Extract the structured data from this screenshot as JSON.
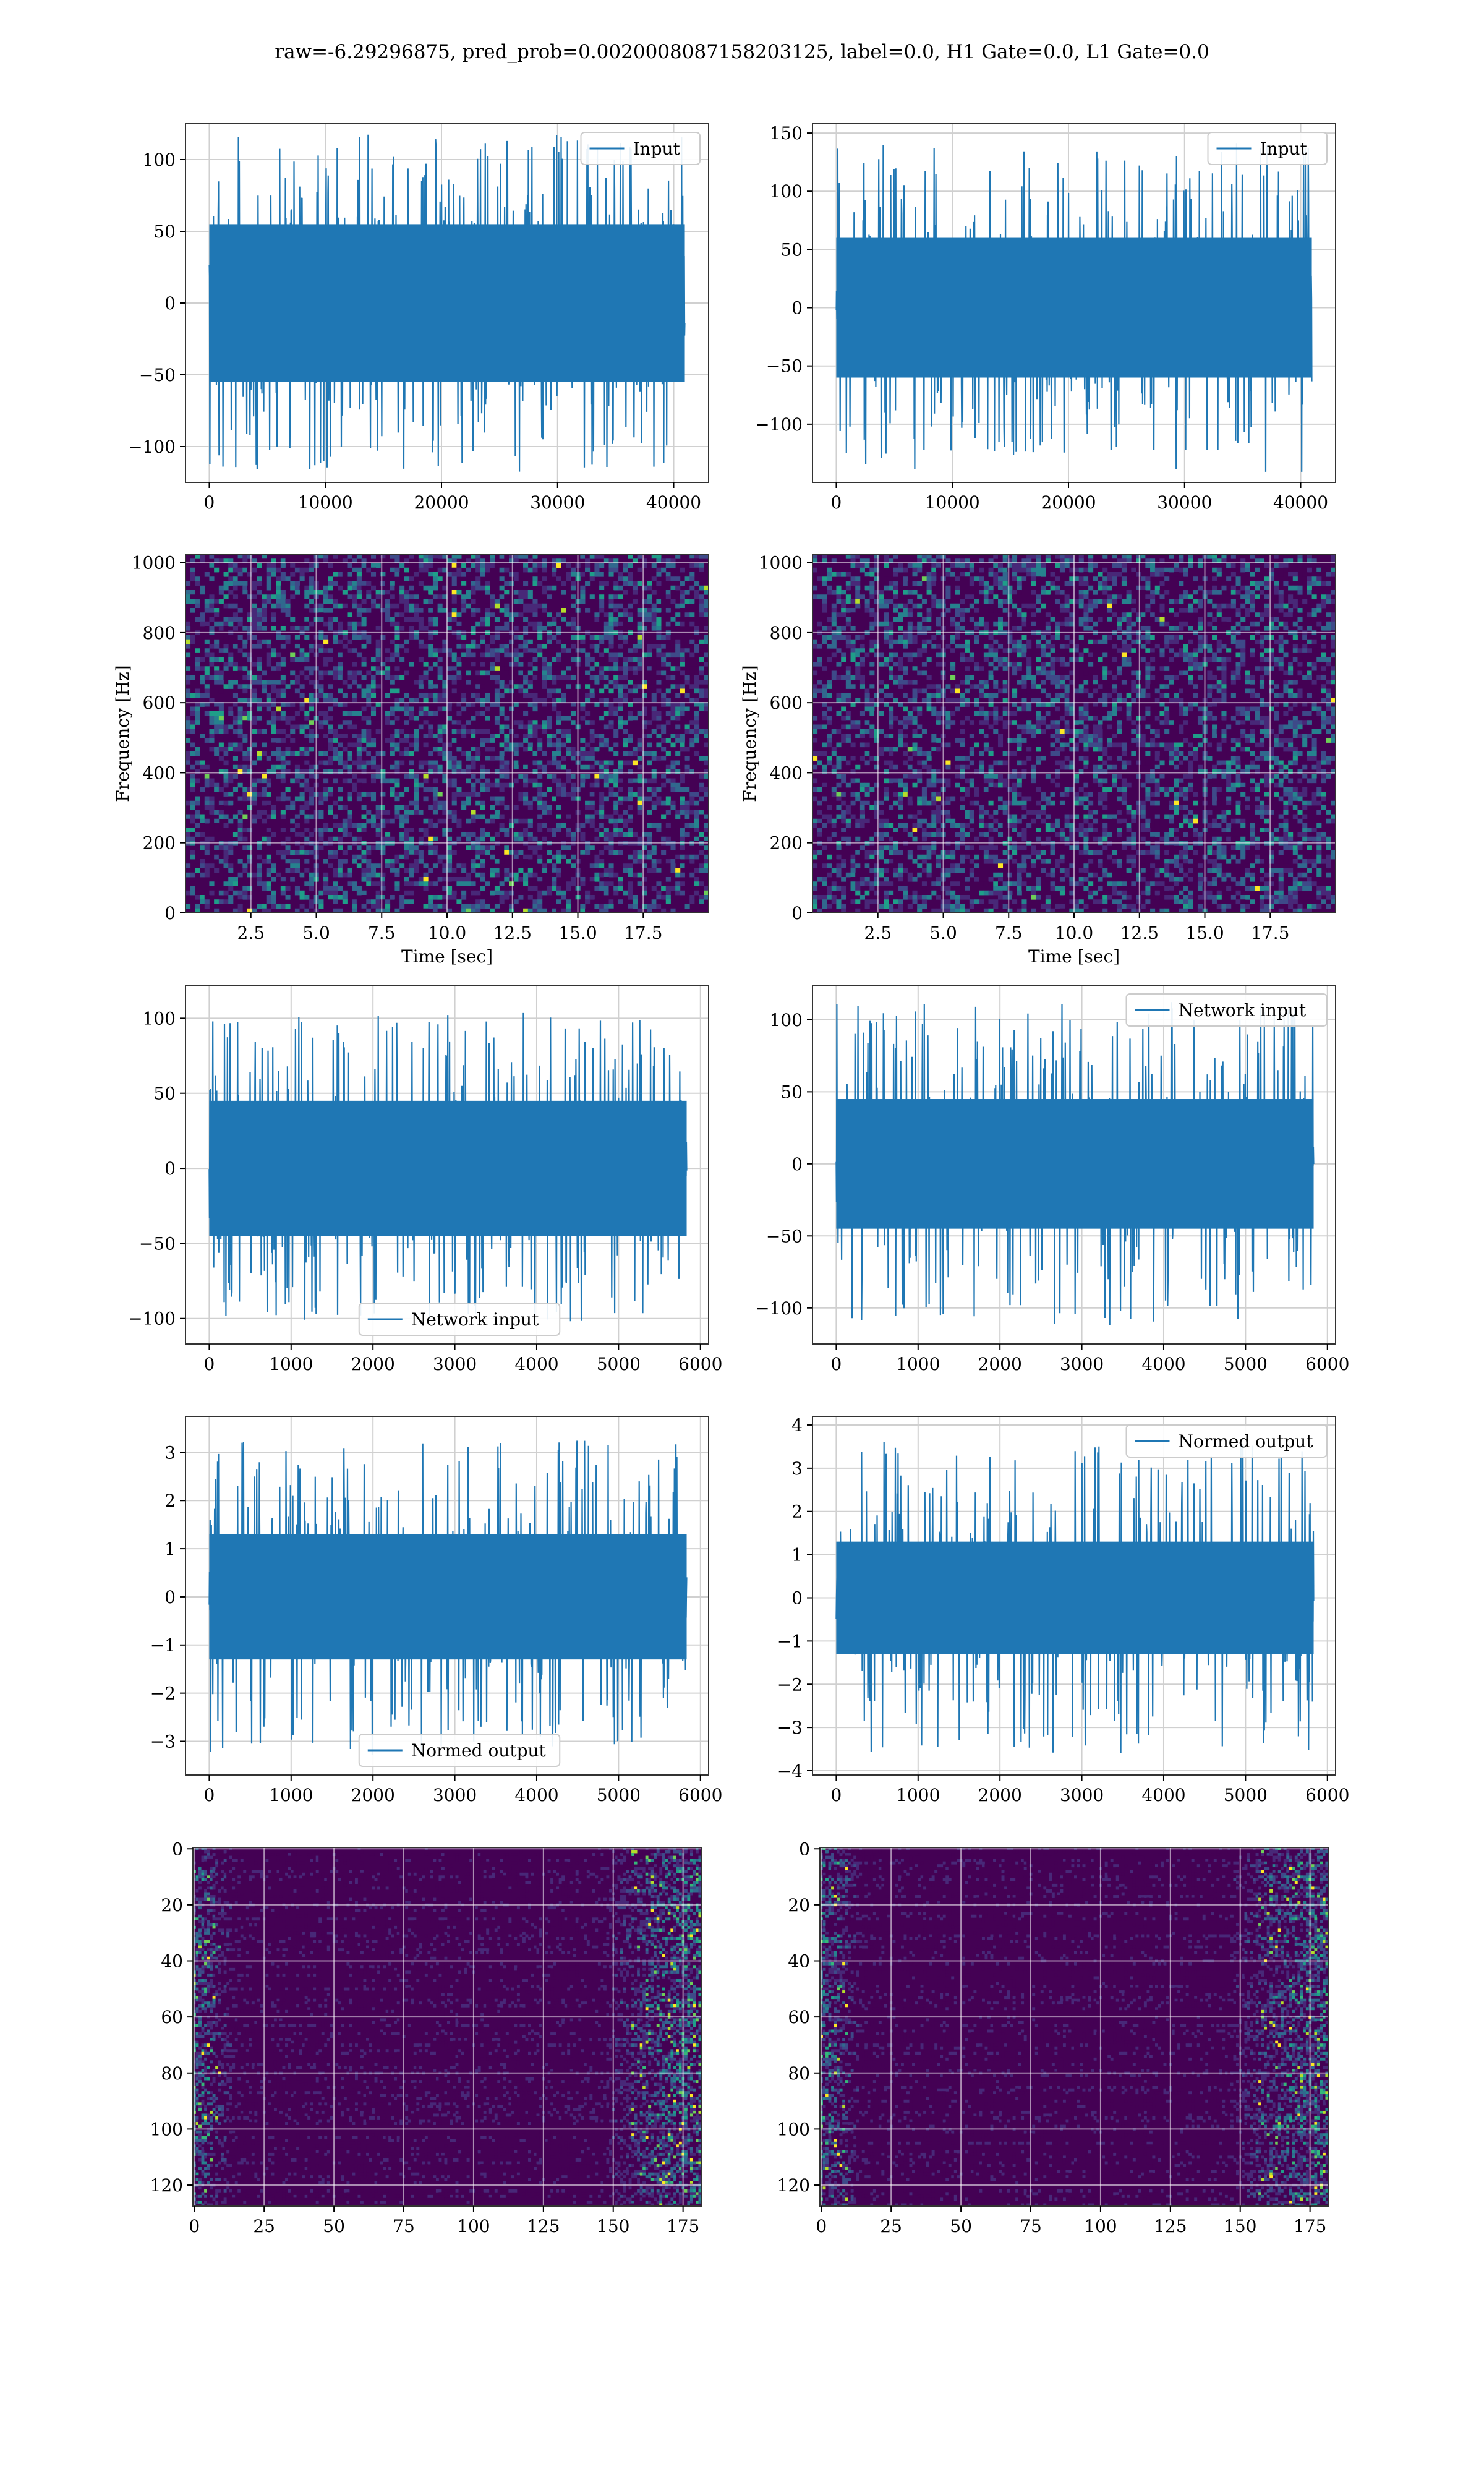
{
  "suptitle": "raw=-6.29296875, pred_prob=0.0020008087158203125, label=0.0, H1 Gate=0.0, L1 Gate=0.0",
  "colors": {
    "line": "#1f77b4",
    "grid": "#d0d0d0",
    "viridis_dark": "#440154",
    "viridis_mid": "#3b528b",
    "viridis_teal": "#21918c",
    "viridis_green": "#5ec962",
    "viridis_yellow": "#fde725"
  },
  "chart_data": [
    {
      "id": "h1-input",
      "type": "line",
      "title": "",
      "xlabel": "",
      "ylabel": "",
      "xlim": [
        -2048,
        43008
      ],
      "ylim": [
        -125,
        125
      ],
      "xticks": [
        0,
        10000,
        20000,
        30000,
        40000
      ],
      "yticks": [
        -100,
        -50,
        0,
        50,
        100
      ],
      "grid": true,
      "legend": "top-right",
      "series": [
        {
          "name": "Input",
          "x_range": [
            0,
            40960
          ],
          "band": [
            -55,
            55
          ],
          "peak": [
            -125,
            115
          ]
        }
      ]
    },
    {
      "id": "l1-input",
      "type": "line",
      "title": "",
      "xlabel": "",
      "ylabel": "",
      "xlim": [
        -2048,
        43008
      ],
      "ylim": [
        -150,
        158
      ],
      "xticks": [
        0,
        10000,
        20000,
        30000,
        40000
      ],
      "yticks": [
        -100,
        -50,
        0,
        50,
        100,
        150
      ],
      "grid": true,
      "legend": "top-right",
      "series": [
        {
          "name": "Input",
          "x_range": [
            0,
            40960
          ],
          "band": [
            -60,
            60
          ],
          "peak": [
            -135,
            150
          ]
        }
      ]
    },
    {
      "id": "h1-spectrogram",
      "type": "heatmap",
      "title": "",
      "xlabel": "Time [sec]",
      "ylabel": "Frequency [Hz]",
      "xlim": [
        0,
        20
      ],
      "ylim": [
        0,
        1024
      ],
      "xticks": [
        2.5,
        5.0,
        7.5,
        10.0,
        12.5,
        15.0,
        17.5
      ],
      "xticklabels": [
        "2.5",
        "5.0",
        "7.5",
        "10.0",
        "12.5",
        "15.0",
        "17.5"
      ],
      "yticks": [
        0,
        200,
        400,
        600,
        800,
        1000
      ],
      "grid": true,
      "colormap": "viridis"
    },
    {
      "id": "l1-spectrogram",
      "type": "heatmap",
      "title": "",
      "xlabel": "Time [sec]",
      "ylabel": "Frequency [Hz]",
      "xlim": [
        0,
        20
      ],
      "ylim": [
        0,
        1024
      ],
      "xticks": [
        2.5,
        5.0,
        7.5,
        10.0,
        12.5,
        15.0,
        17.5
      ],
      "xticklabels": [
        "2.5",
        "5.0",
        "7.5",
        "10.0",
        "12.5",
        "15.0",
        "17.5"
      ],
      "yticks": [
        0,
        200,
        400,
        600,
        800,
        1000
      ],
      "grid": true,
      "colormap": "viridis"
    },
    {
      "id": "h1-network-input",
      "type": "line",
      "title": "",
      "xlabel": "",
      "ylabel": "",
      "xlim": [
        -290,
        6100
      ],
      "ylim": [
        -117,
        122
      ],
      "xticks": [
        0,
        1000,
        2000,
        3000,
        4000,
        5000,
        6000
      ],
      "yticks": [
        -100,
        -50,
        0,
        50,
        100
      ],
      "grid": true,
      "legend": "bottom-center",
      "series": [
        {
          "name": "Network input",
          "x_range": [
            0,
            5832
          ],
          "band": [
            -45,
            45
          ],
          "peak": [
            -105,
            110
          ]
        }
      ]
    },
    {
      "id": "l1-network-input",
      "type": "line",
      "title": "",
      "xlabel": "",
      "ylabel": "",
      "xlim": [
        -290,
        6100
      ],
      "ylim": [
        -125,
        124
      ],
      "xticks": [
        0,
        1000,
        2000,
        3000,
        4000,
        5000,
        6000
      ],
      "yticks": [
        -100,
        -50,
        0,
        50,
        100
      ],
      "grid": true,
      "legend": "top-right",
      "series": [
        {
          "name": "Network input",
          "x_range": [
            0,
            5832
          ],
          "band": [
            -45,
            45
          ],
          "peak": [
            -112,
            120
          ]
        }
      ]
    },
    {
      "id": "h1-normed-output",
      "type": "line",
      "title": "",
      "xlabel": "",
      "ylabel": "",
      "xlim": [
        -290,
        6100
      ],
      "ylim": [
        -3.7,
        3.75
      ],
      "xticks": [
        0,
        1000,
        2000,
        3000,
        4000,
        5000,
        6000
      ],
      "yticks": [
        -3,
        -2,
        -1,
        0,
        1,
        2,
        3
      ],
      "grid": true,
      "legend": "bottom-center",
      "series": [
        {
          "name": "Normed output",
          "x_range": [
            0,
            5832
          ],
          "band": [
            -1.3,
            1.3
          ],
          "peak": [
            -3.4,
            3.5
          ]
        }
      ]
    },
    {
      "id": "l1-normed-output",
      "type": "line",
      "title": "",
      "xlabel": "",
      "ylabel": "",
      "xlim": [
        -290,
        6100
      ],
      "ylim": [
        -4.1,
        4.2
      ],
      "xticks": [
        0,
        1000,
        2000,
        3000,
        4000,
        5000,
        6000
      ],
      "yticks": [
        -4,
        -3,
        -2,
        -1,
        0,
        1,
        2,
        3,
        4
      ],
      "grid": true,
      "legend": "top-right",
      "series": [
        {
          "name": "Normed output",
          "x_range": [
            0,
            5832
          ],
          "band": [
            -1.3,
            1.3
          ],
          "peak": [
            -3.5,
            3.9
          ]
        }
      ]
    },
    {
      "id": "h1-matrix",
      "type": "heatmap",
      "title": "",
      "xlabel": "",
      "ylabel": "",
      "xlim": [
        -0.5,
        181.5
      ],
      "ylim": [
        127.5,
        -0.5
      ],
      "xticks": [
        0,
        25,
        50,
        75,
        100,
        125,
        150,
        175
      ],
      "yticks": [
        0,
        20,
        40,
        60,
        80,
        100,
        120
      ],
      "grid": true,
      "colormap": "viridis",
      "y_inverted": true
    },
    {
      "id": "l1-matrix",
      "type": "heatmap",
      "title": "",
      "xlabel": "",
      "ylabel": "",
      "xlim": [
        -0.5,
        181.5
      ],
      "ylim": [
        127.5,
        -0.5
      ],
      "xticks": [
        0,
        25,
        50,
        75,
        100,
        125,
        150,
        175
      ],
      "yticks": [
        0,
        20,
        40,
        60,
        80,
        100,
        120
      ],
      "grid": true,
      "colormap": "viridis",
      "y_inverted": true
    }
  ]
}
